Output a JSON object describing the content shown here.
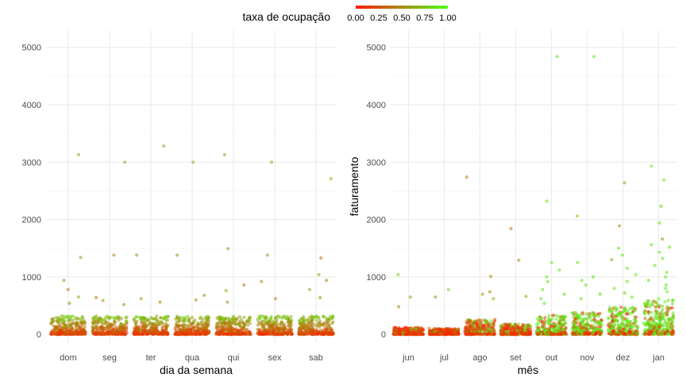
{
  "legend": {
    "title": "taxa de ocupação",
    "low_color": "#ff1a00",
    "high_color": "#4dff1a",
    "labels": [
      "0.00",
      "0.25",
      "0.50",
      "0.75",
      "1.00"
    ]
  },
  "chart_data": [
    {
      "type": "scatter",
      "title": "",
      "xlabel": "dia da semana",
      "ylabel": "",
      "categories": [
        "dom",
        "seg",
        "ter",
        "qua",
        "qui",
        "sex",
        "sab"
      ],
      "ylim": [
        -150,
        5300
      ],
      "yticks": [
        0,
        1000,
        2000,
        3000,
        4000,
        5000
      ],
      "grid": true,
      "color_by": "taxa de ocupação",
      "bulk_ymax": 320,
      "outliers": [
        {
          "x": "dom",
          "y": 3130,
          "occ": 0.6
        },
        {
          "x": "dom",
          "y": 1340,
          "occ": 0.5
        },
        {
          "x": "dom",
          "y": 940,
          "occ": 0.5
        },
        {
          "x": "dom",
          "y": 780,
          "occ": 0.4
        },
        {
          "x": "dom",
          "y": 650,
          "occ": 0.6
        },
        {
          "x": "dom",
          "y": 540,
          "occ": 0.5
        },
        {
          "x": "seg",
          "y": 3000,
          "occ": 0.6
        },
        {
          "x": "seg",
          "y": 1380,
          "occ": 0.5
        },
        {
          "x": "seg",
          "y": 640,
          "occ": 0.4
        },
        {
          "x": "seg",
          "y": 590,
          "occ": 0.5
        },
        {
          "x": "seg",
          "y": 520,
          "occ": 0.5
        },
        {
          "x": "ter",
          "y": 3280,
          "occ": 0.6
        },
        {
          "x": "ter",
          "y": 1380,
          "occ": 0.5
        },
        {
          "x": "ter",
          "y": 620,
          "occ": 0.5
        },
        {
          "x": "ter",
          "y": 560,
          "occ": 0.4
        },
        {
          "x": "qua",
          "y": 3000,
          "occ": 0.6
        },
        {
          "x": "qua",
          "y": 1380,
          "occ": 0.5
        },
        {
          "x": "qua",
          "y": 680,
          "occ": 0.5
        },
        {
          "x": "qua",
          "y": 600,
          "occ": 0.5
        },
        {
          "x": "qui",
          "y": 3130,
          "occ": 0.6
        },
        {
          "x": "qui",
          "y": 1490,
          "occ": 0.5
        },
        {
          "x": "qui",
          "y": 860,
          "occ": 0.4
        },
        {
          "x": "qui",
          "y": 760,
          "occ": 0.6
        },
        {
          "x": "qui",
          "y": 560,
          "occ": 0.5
        },
        {
          "x": "sex",
          "y": 3000,
          "occ": 0.6
        },
        {
          "x": "sex",
          "y": 1380,
          "occ": 0.5
        },
        {
          "x": "sex",
          "y": 920,
          "occ": 0.5
        },
        {
          "x": "sex",
          "y": 620,
          "occ": 0.4
        },
        {
          "x": "sab",
          "y": 2710,
          "occ": 0.6
        },
        {
          "x": "sab",
          "y": 1330,
          "occ": 0.4
        },
        {
          "x": "sab",
          "y": 1040,
          "occ": 0.6
        },
        {
          "x": "sab",
          "y": 940,
          "occ": 0.4
        },
        {
          "x": "sab",
          "y": 780,
          "occ": 0.6
        },
        {
          "x": "sab",
          "y": 640,
          "occ": 0.5
        }
      ]
    },
    {
      "type": "scatter",
      "title": "",
      "xlabel": "mês",
      "ylabel": "faturamento",
      "categories": [
        "jun",
        "jul",
        "ago",
        "set",
        "out",
        "nov",
        "dez",
        "jan"
      ],
      "ylim": [
        -150,
        5300
      ],
      "yticks": [
        0,
        1000,
        2000,
        3000,
        4000,
        5000
      ],
      "grid": true,
      "color_by": "taxa de ocupação",
      "bulk": [
        {
          "x": "jun",
          "ymax": 120,
          "occ_mean": 0.1
        },
        {
          "x": "jul",
          "ymax": 100,
          "occ_mean": 0.1
        },
        {
          "x": "ago",
          "ymax": 260,
          "occ_mean": 0.3
        },
        {
          "x": "set",
          "ymax": 180,
          "occ_mean": 0.25
        },
        {
          "x": "out",
          "ymax": 330,
          "occ_mean": 0.65
        },
        {
          "x": "nov",
          "ymax": 380,
          "occ_mean": 0.75
        },
        {
          "x": "dez",
          "ymax": 480,
          "occ_mean": 0.7
        },
        {
          "x": "jan",
          "ymax": 620,
          "occ_mean": 0.8
        }
      ],
      "outliers": [
        {
          "x": "jun",
          "y": 1040,
          "occ": 0.8
        },
        {
          "x": "jun",
          "y": 650,
          "occ": 0.6
        },
        {
          "x": "jun",
          "y": 480,
          "occ": 0.5
        },
        {
          "x": "jul",
          "y": 780,
          "occ": 0.8
        },
        {
          "x": "jul",
          "y": 650,
          "occ": 0.5
        },
        {
          "x": "ago",
          "y": 2740,
          "occ": 0.5
        },
        {
          "x": "ago",
          "y": 1010,
          "occ": 0.5
        },
        {
          "x": "ago",
          "y": 740,
          "occ": 0.5
        },
        {
          "x": "ago",
          "y": 700,
          "occ": 0.6
        },
        {
          "x": "ago",
          "y": 620,
          "occ": 0.6
        },
        {
          "x": "set",
          "y": 1840,
          "occ": 0.4
        },
        {
          "x": "set",
          "y": 1290,
          "occ": 0.5
        },
        {
          "x": "set",
          "y": 660,
          "occ": 0.6
        },
        {
          "x": "out",
          "y": 4840,
          "occ": 0.9
        },
        {
          "x": "out",
          "y": 2320,
          "occ": 0.9
        },
        {
          "x": "out",
          "y": 1250,
          "occ": 0.9
        },
        {
          "x": "out",
          "y": 1120,
          "occ": 0.9
        },
        {
          "x": "out",
          "y": 1000,
          "occ": 0.9
        },
        {
          "x": "out",
          "y": 920,
          "occ": 0.9
        },
        {
          "x": "out",
          "y": 780,
          "occ": 0.9
        },
        {
          "x": "out",
          "y": 700,
          "occ": 0.8
        },
        {
          "x": "out",
          "y": 620,
          "occ": 0.9
        },
        {
          "x": "out",
          "y": 540,
          "occ": 0.9
        },
        {
          "x": "nov",
          "y": 4840,
          "occ": 0.9
        },
        {
          "x": "nov",
          "y": 2060,
          "occ": 0.8
        },
        {
          "x": "nov",
          "y": 1250,
          "occ": 0.9
        },
        {
          "x": "nov",
          "y": 1000,
          "occ": 0.9
        },
        {
          "x": "nov",
          "y": 940,
          "occ": 0.9
        },
        {
          "x": "nov",
          "y": 860,
          "occ": 0.9
        },
        {
          "x": "nov",
          "y": 700,
          "occ": 0.8
        },
        {
          "x": "nov",
          "y": 620,
          "occ": 0.9
        },
        {
          "x": "dez",
          "y": 2640,
          "occ": 0.6
        },
        {
          "x": "dez",
          "y": 1890,
          "occ": 0.5
        },
        {
          "x": "dez",
          "y": 1500,
          "occ": 0.9
        },
        {
          "x": "dez",
          "y": 1380,
          "occ": 0.9
        },
        {
          "x": "dez",
          "y": 1300,
          "occ": 0.6
        },
        {
          "x": "dez",
          "y": 1150,
          "occ": 0.9
        },
        {
          "x": "dez",
          "y": 1040,
          "occ": 0.9
        },
        {
          "x": "dez",
          "y": 920,
          "occ": 0.9
        },
        {
          "x": "dez",
          "y": 800,
          "occ": 0.9
        },
        {
          "x": "dez",
          "y": 720,
          "occ": 0.8
        },
        {
          "x": "dez",
          "y": 650,
          "occ": 0.9
        },
        {
          "x": "jan",
          "y": 2930,
          "occ": 0.9
        },
        {
          "x": "jan",
          "y": 2690,
          "occ": 0.9
        },
        {
          "x": "jan",
          "y": 2230,
          "occ": 0.8
        },
        {
          "x": "jan",
          "y": 1940,
          "occ": 0.9
        },
        {
          "x": "jan",
          "y": 1660,
          "occ": 0.5
        },
        {
          "x": "jan",
          "y": 1560,
          "occ": 0.9
        },
        {
          "x": "jan",
          "y": 1520,
          "occ": 0.9
        },
        {
          "x": "jan",
          "y": 1430,
          "occ": 0.9
        },
        {
          "x": "jan",
          "y": 1320,
          "occ": 0.9
        },
        {
          "x": "jan",
          "y": 1200,
          "occ": 0.9
        },
        {
          "x": "jan",
          "y": 1080,
          "occ": 0.9
        },
        {
          "x": "jan",
          "y": 1000,
          "occ": 0.9
        },
        {
          "x": "jan",
          "y": 940,
          "occ": 0.9
        },
        {
          "x": "jan",
          "y": 860,
          "occ": 0.9
        },
        {
          "x": "jan",
          "y": 800,
          "occ": 0.9
        },
        {
          "x": "jan",
          "y": 740,
          "occ": 0.9
        }
      ]
    }
  ]
}
